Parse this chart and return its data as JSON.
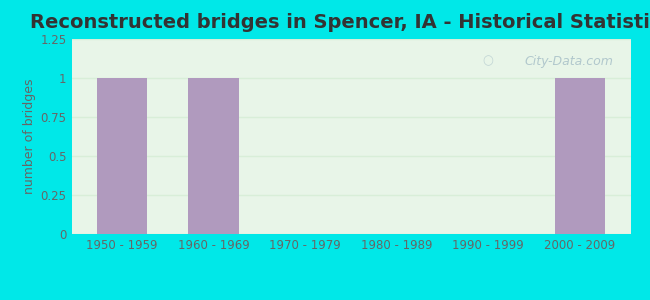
{
  "title": "Reconstructed bridges in Spencer, IA - Historical Statistics",
  "categories": [
    "1950 - 1959",
    "1960 - 1969",
    "1970 - 1979",
    "1980 - 1989",
    "1990 - 1999",
    "2000 - 2009"
  ],
  "values": [
    1,
    1,
    0,
    0,
    0,
    1
  ],
  "bar_color": "#b09abe",
  "background_outer": "#00e8e8",
  "background_inner_top": "#e8f5e8",
  "background_inner_bottom": "#f0faf0",
  "ylabel": "number of bridges",
  "ylim": [
    0,
    1.25
  ],
  "yticks": [
    0,
    0.25,
    0.5,
    0.75,
    1,
    1.25
  ],
  "title_fontsize": 14,
  "axis_label_fontsize": 9,
  "tick_fontsize": 8.5,
  "watermark_text": "City-Data.com",
  "watermark_color": "#a8c0c8",
  "grid_color": "#d8eed8",
  "bar_width": 0.55
}
